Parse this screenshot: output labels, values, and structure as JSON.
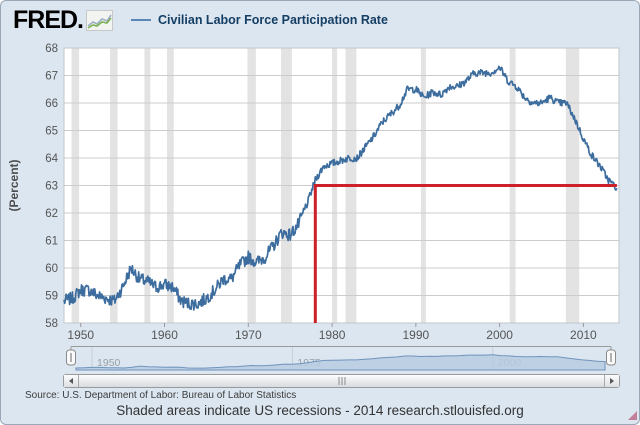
{
  "header": {
    "logo_text": "FRED.",
    "logo_icon": "fred-sparkline-icon",
    "legend": {
      "series_label": "Civilian Labor Force Participation Rate",
      "line_color": "#4572a7"
    }
  },
  "chart_data": {
    "type": "line",
    "title": "Civilian Labor Force Participation Rate",
    "xlabel": "",
    "ylabel": "(Percent)",
    "ylim": [
      58,
      68
    ],
    "x_start": 1948,
    "x_end": 2014.25,
    "y_ticks": [
      58,
      59,
      60,
      61,
      62,
      63,
      64,
      65,
      66,
      67,
      68
    ],
    "x_ticks": [
      1950,
      1960,
      1970,
      1980,
      1990,
      2000,
      2010
    ],
    "grid": true,
    "legend_position": "top",
    "series_color": "#3d6d9e",
    "x": [
      1948,
      1949,
      1950,
      1951,
      1952,
      1953,
      1954,
      1955,
      1956,
      1957,
      1958,
      1959,
      1960,
      1961,
      1962,
      1963,
      1964,
      1965,
      1966,
      1967,
      1968,
      1969,
      1970,
      1971,
      1972,
      1973,
      1974,
      1975,
      1976,
      1977,
      1978,
      1979,
      1980,
      1981,
      1982,
      1983,
      1984,
      1985,
      1986,
      1987,
      1988,
      1989,
      1990,
      1991,
      1992,
      1993,
      1994,
      1995,
      1996,
      1997,
      1998,
      1999,
      2000,
      2001,
      2002,
      2003,
      2004,
      2005,
      2006,
      2007,
      2008,
      2009,
      2010,
      2011,
      2012,
      2013,
      2014
    ],
    "values": [
      58.8,
      58.9,
      59.2,
      59.2,
      59.0,
      58.9,
      58.8,
      59.3,
      60.0,
      59.6,
      59.5,
      59.3,
      59.4,
      59.3,
      58.8,
      58.7,
      58.7,
      58.9,
      59.2,
      59.6,
      59.6,
      60.1,
      60.4,
      60.2,
      60.4,
      60.8,
      61.3,
      61.2,
      61.6,
      62.3,
      63.2,
      63.7,
      63.8,
      63.9,
      64.0,
      64.0,
      64.4,
      64.8,
      65.3,
      65.6,
      65.9,
      66.5,
      66.5,
      66.2,
      66.4,
      66.3,
      66.6,
      66.6,
      66.8,
      67.1,
      67.1,
      67.1,
      67.3,
      66.8,
      66.6,
      66.2,
      66.0,
      66.0,
      66.2,
      66.0,
      66.0,
      65.4,
      64.7,
      64.1,
      63.7,
      63.2,
      62.9
    ],
    "recessions": [
      [
        1948.9,
        1949.8
      ],
      [
        1953.5,
        1954.4
      ],
      [
        1957.6,
        1958.3
      ],
      [
        1960.3,
        1961.1
      ],
      [
        1969.9,
        1970.9
      ],
      [
        1973.9,
        1975.2
      ],
      [
        1980.0,
        1980.6
      ],
      [
        1981.6,
        1982.9
      ],
      [
        1990.6,
        1991.2
      ],
      [
        2001.2,
        2001.9
      ],
      [
        2007.9,
        2009.5
      ]
    ],
    "recession_fill": "#e3e3e3",
    "annotation": {
      "shape": "red-threshold-lines",
      "x_vertical": 1978,
      "y_value": 63,
      "x_end": 2014,
      "color": "#cc2128",
      "width": 3
    }
  },
  "navigator": {
    "labels": [
      {
        "year": 1950,
        "text": "1950"
      },
      {
        "year": 1975,
        "text": "1975"
      },
      {
        "year": 2000,
        "text": "2000"
      }
    ],
    "fill": "#b9cbe2",
    "stroke": "#6f93bc"
  },
  "scrollbar": {
    "left_icon": "left-arrow-icon",
    "right_icon": "right-arrow-icon",
    "grip_icon": "drag-grip-icon"
  },
  "source_line": "Source: U.S. Department of Labor: Bureau of Labor Statistics",
  "footer_note": "Shaded areas indicate US recessions - 2014 research.stlouisfed.org",
  "colors": {
    "background": "#dce6f0",
    "plot_background": "#ffffff",
    "gridline": "#cccccc",
    "axis_text": "#555555",
    "red_annotation": "#cc2128"
  }
}
